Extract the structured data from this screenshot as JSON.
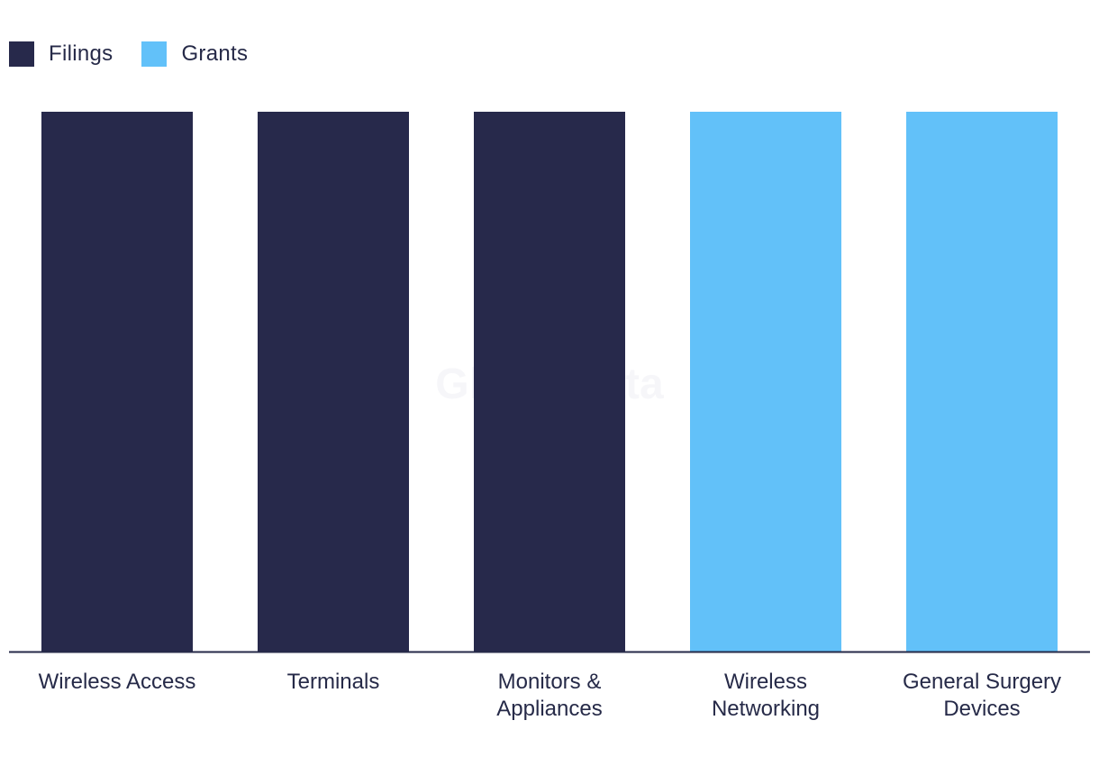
{
  "chart_data": {
    "type": "bar",
    "categories": [
      [
        "Wireless Access"
      ],
      [
        "Terminals"
      ],
      [
        "Monitors &",
        "Appliances"
      ],
      [
        "Wireless",
        "Networking"
      ],
      [
        "General Surgery",
        "Devices"
      ]
    ],
    "values": [
      1,
      1,
      1,
      1,
      1
    ],
    "series_of_bar": [
      "Filings",
      "Filings",
      "Filings",
      "Grants",
      "Grants"
    ],
    "legend": [
      {
        "name": "Filings",
        "color": "#27294b"
      },
      {
        "name": "Grants",
        "color": "#62c1f9"
      }
    ],
    "legend_position": "top-left",
    "ylim": [
      0,
      1
    ],
    "grid": false,
    "watermark": "GlobalData"
  }
}
